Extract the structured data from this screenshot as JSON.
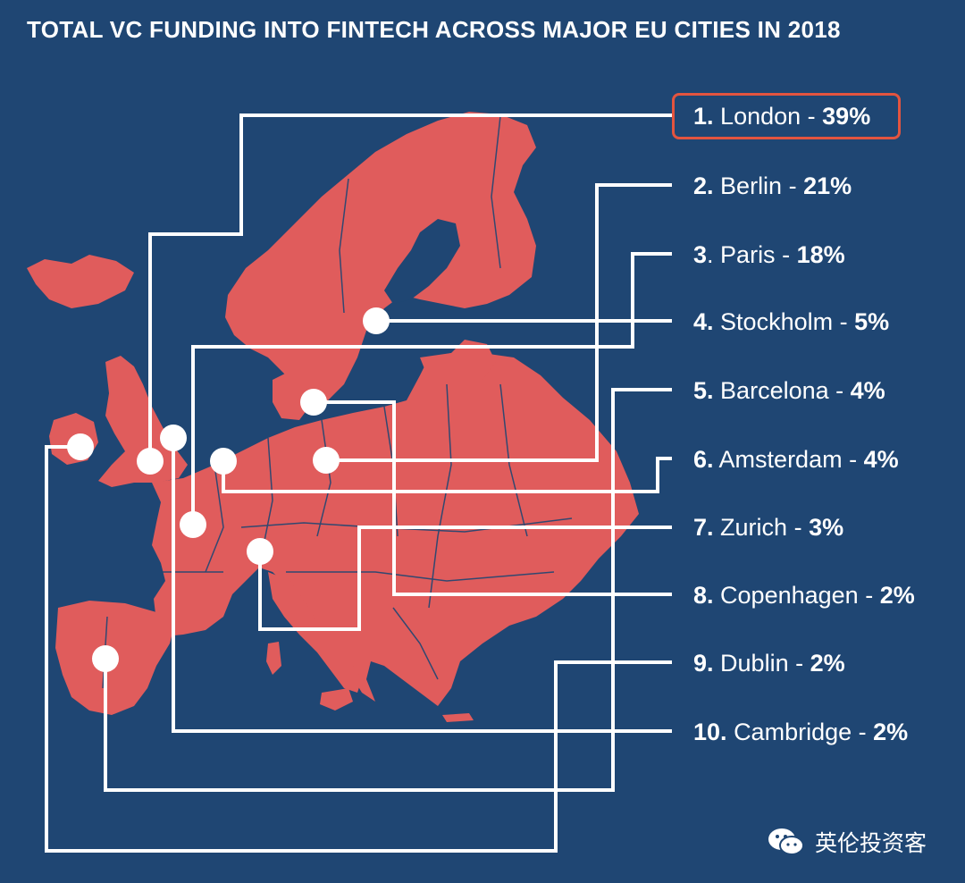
{
  "title": "TOTAL VC FUNDING INTO FINTECH ACROSS MAJOR EU CITIES IN 2018",
  "colors": {
    "background": "#1f4673",
    "land": "#e05c5c",
    "borders": "#1f4673",
    "connector": "#ffffff",
    "highlight": "#e3543f"
  },
  "cities": [
    {
      "rank": "1.",
      "name": "London",
      "pct": "39%",
      "highlighted": true
    },
    {
      "rank": "2.",
      "name": "Berlin",
      "pct": "21%"
    },
    {
      "rank": "3",
      "name": "Paris",
      "pct": "18%"
    },
    {
      "rank": "4.",
      "name": "Stockholm",
      "pct": "5%"
    },
    {
      "rank": "5.",
      "name": "Barcelona",
      "pct": "4%"
    },
    {
      "rank": "6.",
      "name": "Amsterdam",
      "pct": "4%"
    },
    {
      "rank": "7.",
      "name": "Zurich",
      "pct": "3%"
    },
    {
      "rank": "8.",
      "name": "Copenhagen",
      "pct": "2%"
    },
    {
      "rank": "9.",
      "name": "Dublin",
      "pct": "2%"
    },
    {
      "rank": "10.",
      "name": "Cambridge",
      "pct": "2%"
    }
  ],
  "watermark": {
    "icon": "wechat-icon",
    "text": "英伦投资客"
  }
}
